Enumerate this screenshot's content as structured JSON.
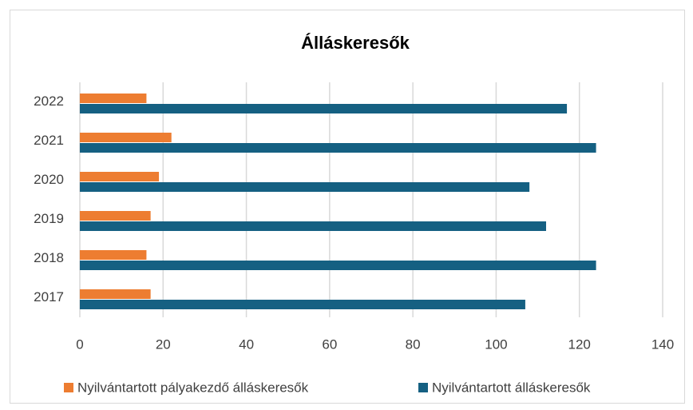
{
  "chart_data": {
    "type": "bar",
    "orientation": "horizontal",
    "title": "Álláskeresők",
    "categories": [
      "2017",
      "2018",
      "2019",
      "2020",
      "2021",
      "2022"
    ],
    "series": [
      {
        "name": "Nyilvántartott pályakezdő álláskeresők",
        "color": "#ed7d31",
        "values": [
          17,
          16,
          17,
          19,
          22,
          16
        ]
      },
      {
        "name": "Nyilvántartott álláskeresők",
        "color": "#156082",
        "values": [
          107,
          124,
          112,
          108,
          124,
          117
        ]
      }
    ],
    "xlim": [
      0,
      140
    ],
    "xticks": [
      0,
      20,
      40,
      60,
      80,
      100,
      120,
      140
    ],
    "grid": true,
    "legend": "bottom"
  }
}
